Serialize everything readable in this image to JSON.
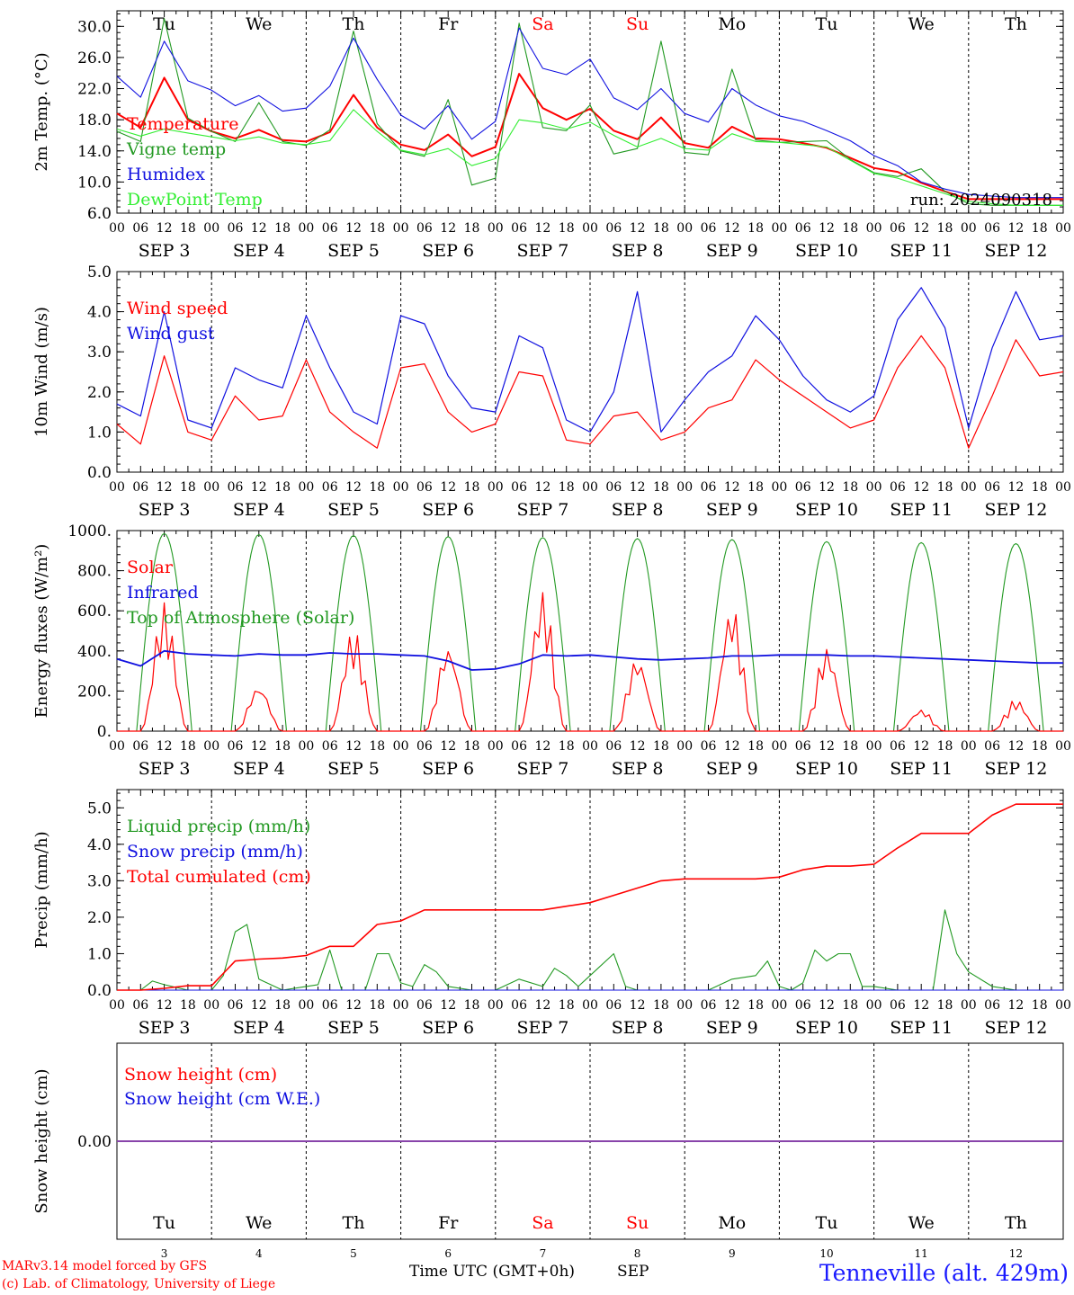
{
  "colors": {
    "red": "#ff0000",
    "green": "#229922",
    "blue": "#1010e0",
    "lightgreen": "#33ee33",
    "purple": "#8844aa"
  },
  "chart_data": [
    {
      "type": "line",
      "ylabel": "2m Temp. (°C)",
      "ylim": [
        6,
        32
      ],
      "yticks": [
        "6.0",
        "10.0",
        "14.0",
        "18.0",
        "22.0",
        "26.0",
        "30.0"
      ],
      "ytick_values": [
        6,
        10,
        14,
        18,
        22,
        26,
        30
      ],
      "xlabel_days": [
        "SEP  3",
        "SEP  4",
        "SEP  5",
        "SEP  6",
        "SEP  7",
        "SEP  8",
        "SEP  9",
        "SEP  10",
        "SEP  11",
        "SEP  12"
      ],
      "weekdays_top": [
        "Tu",
        "We",
        "Th",
        "Fr",
        "Sa",
        "Su",
        "Mo",
        "Tu",
        "We",
        "Th"
      ],
      "run_label": "run: 2024090318",
      "series": [
        {
          "name": "Temperature",
          "color": "red",
          "x": [
            0,
            6,
            12,
            18,
            24,
            30,
            36,
            42,
            48,
            54,
            60,
            66,
            72,
            78,
            84,
            90,
            96,
            102,
            108,
            114,
            120,
            126,
            132,
            138,
            144,
            150,
            156,
            162,
            168,
            174,
            180,
            186,
            192,
            198,
            204,
            210,
            216,
            222,
            228,
            234,
            240
          ],
          "values": [
            18.8,
            17.0,
            23.4,
            18.0,
            16.5,
            15.6,
            16.7,
            15.4,
            15.2,
            16.4,
            21.2,
            17.0,
            14.8,
            14.1,
            16.1,
            13.3,
            14.5,
            23.9,
            19.5,
            18.0,
            19.4,
            16.6,
            15.5,
            18.3,
            15.0,
            14.4,
            17.1,
            15.6,
            15.5,
            15.0,
            14.4,
            13.1,
            11.8,
            11.3,
            9.9,
            8.8,
            7.8,
            7.8,
            7.8,
            7.8,
            7.8
          ]
        },
        {
          "name": "Vigne temp",
          "color": "green",
          "x": [
            0,
            6,
            12,
            18,
            24,
            30,
            36,
            42,
            48,
            54,
            60,
            66,
            72,
            78,
            84,
            90,
            96,
            102,
            108,
            114,
            120,
            126,
            132,
            138,
            144,
            150,
            156,
            162,
            168,
            174,
            180,
            186,
            192,
            198,
            204,
            210,
            216,
            222,
            228,
            234,
            240
          ],
          "values": [
            16.5,
            15.2,
            31.0,
            18.2,
            16.5,
            15.2,
            20.2,
            15.2,
            14.7,
            16.7,
            29.4,
            17.5,
            14.0,
            13.3,
            20.6,
            9.6,
            10.5,
            30.4,
            17.0,
            16.6,
            19.9,
            13.6,
            14.3,
            28.1,
            13.8,
            13.5,
            24.5,
            15.4,
            15.1,
            15.2,
            15.3,
            12.9,
            11.2,
            10.7,
            11.7,
            8.8,
            7.2,
            7.0,
            7.0,
            7.0,
            7.0
          ]
        },
        {
          "name": "Humidex",
          "color": "blue",
          "x": [
            0,
            6,
            12,
            18,
            24,
            30,
            36,
            42,
            48,
            54,
            60,
            66,
            72,
            78,
            84,
            90,
            96,
            102,
            108,
            114,
            120,
            126,
            132,
            138,
            144,
            150,
            156,
            162,
            168,
            174,
            180,
            186,
            192,
            198,
            204,
            210,
            216,
            222,
            228,
            234,
            240
          ],
          "values": [
            23.6,
            20.9,
            28.1,
            23.0,
            21.8,
            19.8,
            21.1,
            19.1,
            19.5,
            22.3,
            28.5,
            23.2,
            18.6,
            16.8,
            19.8,
            15.5,
            17.8,
            29.8,
            24.6,
            23.8,
            25.8,
            20.8,
            19.3,
            22.0,
            18.8,
            17.7,
            22.0,
            19.9,
            18.5,
            17.8,
            16.6,
            15.3,
            13.4,
            12.1,
            10.0,
            9.1,
            8.4,
            8.2,
            8.0,
            8.0,
            8.0
          ]
        },
        {
          "name": "DewPoint Temp",
          "color": "lightgreen",
          "x": [
            0,
            6,
            12,
            18,
            24,
            30,
            36,
            42,
            48,
            54,
            60,
            66,
            72,
            78,
            84,
            90,
            96,
            102,
            108,
            114,
            120,
            126,
            132,
            138,
            144,
            150,
            156,
            162,
            168,
            174,
            180,
            186,
            192,
            198,
            204,
            210,
            216,
            222,
            228,
            234,
            240
          ],
          "values": [
            16.8,
            15.9,
            16.8,
            16.3,
            15.8,
            15.3,
            15.8,
            15.0,
            14.8,
            15.3,
            19.3,
            16.5,
            14.1,
            13.5,
            14.3,
            12.1,
            13.0,
            18.0,
            17.6,
            16.8,
            17.7,
            16.0,
            14.5,
            15.6,
            14.3,
            14.1,
            16.2,
            15.2,
            15.1,
            14.8,
            14.5,
            12.8,
            11.1,
            10.5,
            9.5,
            8.5,
            7.5,
            7.2,
            7.0,
            7.0,
            7.0
          ]
        }
      ]
    },
    {
      "type": "line",
      "ylabel": "10m Wind (m/s)",
      "ylim": [
        0,
        5
      ],
      "yticks": [
        "0.0",
        "1.0",
        "2.0",
        "3.0",
        "4.0",
        "5.0"
      ],
      "ytick_values": [
        0,
        1,
        2,
        3,
        4,
        5
      ],
      "xlabel_days": [
        "SEP  3",
        "SEP  4",
        "SEP  5",
        "SEP  6",
        "SEP  7",
        "SEP  8",
        "SEP  9",
        "SEP  10",
        "SEP  11",
        "SEP  12"
      ],
      "series": [
        {
          "name": "Wind speed",
          "color": "red",
          "x": [
            0,
            6,
            12,
            18,
            24,
            30,
            36,
            42,
            48,
            54,
            60,
            66,
            72,
            78,
            84,
            90,
            96,
            102,
            108,
            114,
            120,
            126,
            132,
            138,
            144,
            150,
            156,
            162,
            168,
            174,
            180,
            186,
            192,
            198,
            204,
            210,
            216,
            222,
            228,
            234,
            240
          ],
          "values": [
            1.2,
            0.7,
            2.9,
            1.0,
            0.8,
            1.9,
            1.3,
            1.4,
            2.8,
            1.5,
            1.0,
            0.6,
            2.6,
            2.7,
            1.5,
            1.0,
            1.2,
            2.5,
            2.4,
            0.8,
            0.7,
            1.4,
            1.5,
            0.8,
            1.0,
            1.6,
            1.8,
            2.8,
            2.3,
            1.9,
            1.5,
            1.1,
            1.3,
            2.6,
            3.4,
            2.6,
            0.6,
            1.9,
            3.3,
            2.4,
            2.5
          ]
        },
        {
          "name": "Wind gust",
          "color": "blue",
          "x": [
            0,
            6,
            12,
            18,
            24,
            30,
            36,
            42,
            48,
            54,
            60,
            66,
            72,
            78,
            84,
            90,
            96,
            102,
            108,
            114,
            120,
            126,
            132,
            138,
            144,
            150,
            156,
            162,
            168,
            174,
            180,
            186,
            192,
            198,
            204,
            210,
            216,
            222,
            228,
            234,
            240
          ],
          "values": [
            1.7,
            1.4,
            4.0,
            1.3,
            1.1,
            2.6,
            2.3,
            2.1,
            3.9,
            2.6,
            1.5,
            1.2,
            3.9,
            3.7,
            2.4,
            1.6,
            1.5,
            3.4,
            3.1,
            1.3,
            1.0,
            2.0,
            4.5,
            1.0,
            1.8,
            2.5,
            2.9,
            3.9,
            3.3,
            2.4,
            1.8,
            1.5,
            1.9,
            3.8,
            4.6,
            3.6,
            1.1,
            3.1,
            4.5,
            3.3,
            3.4
          ]
        }
      ]
    },
    {
      "type": "line",
      "ylabel": "Energy fluxes (W/m²)",
      "ylim": [
        0,
        1000
      ],
      "yticks": [
        "0.",
        "200.",
        "400.",
        "600.",
        "800.",
        "1000."
      ],
      "ytick_values": [
        0,
        200,
        400,
        600,
        800,
        1000
      ],
      "xlabel_days": [
        "SEP  3",
        "SEP  4",
        "SEP  5",
        "SEP  6",
        "SEP  7",
        "SEP  8",
        "SEP  9",
        "SEP  10",
        "SEP  11",
        "SEP  12"
      ],
      "series": [
        {
          "name": "Solar",
          "color": "red",
          "daily_peaks": [
            640,
            230,
            510,
            430,
            700,
            370,
            630,
            420,
            110,
            160
          ]
        },
        {
          "name": "Infrared",
          "color": "blue",
          "x": [
            0,
            6,
            12,
            18,
            24,
            30,
            36,
            42,
            48,
            54,
            60,
            66,
            72,
            78,
            84,
            90,
            96,
            102,
            108,
            114,
            120,
            126,
            132,
            138,
            144,
            150,
            156,
            162,
            168,
            174,
            180,
            186,
            192,
            198,
            204,
            210,
            216,
            222,
            228,
            234,
            240
          ],
          "values": [
            360,
            325,
            400,
            385,
            380,
            375,
            385,
            380,
            380,
            390,
            385,
            385,
            380,
            375,
            350,
            305,
            310,
            335,
            380,
            375,
            380,
            370,
            360,
            355,
            360,
            365,
            375,
            375,
            380,
            380,
            380,
            375,
            375,
            370,
            365,
            360,
            355,
            350,
            345,
            340,
            340
          ]
        },
        {
          "name": "Top of Atmosphere (Solar)",
          "color": "green",
          "daily_peaks": [
            985,
            980,
            975,
            970,
            965,
            960,
            955,
            945,
            940,
            935
          ]
        }
      ]
    },
    {
      "type": "line",
      "ylabel": "Precip (mm/h)",
      "ylim": [
        0,
        5.5
      ],
      "yticks": [
        "0.0",
        "1.0",
        "2.0",
        "3.0",
        "4.0",
        "5.0"
      ],
      "ytick_values": [
        0,
        1,
        2,
        3,
        4,
        5
      ],
      "xlabel_days": [
        "SEP  3",
        "SEP  4",
        "SEP  5",
        "SEP  6",
        "SEP  7",
        "SEP  8",
        "SEP  9",
        "SEP  10",
        "SEP  11",
        "SEP  12"
      ],
      "series": [
        {
          "name": "Liquid precip (mm/h)",
          "color": "green",
          "x": [
            0,
            6,
            9,
            12,
            18,
            24,
            27,
            30,
            33,
            36,
            42,
            48,
            51,
            54,
            57,
            60,
            63,
            66,
            69,
            72,
            75,
            78,
            81,
            84,
            90,
            96,
            102,
            108,
            111,
            114,
            117,
            120,
            126,
            129,
            132,
            135,
            138,
            144,
            150,
            156,
            162,
            165,
            168,
            171,
            174,
            177,
            180,
            183,
            186,
            189,
            192,
            198,
            204,
            207,
            210,
            213,
            216,
            222,
            228,
            234,
            240
          ],
          "values": [
            0,
            0,
            0.25,
            0.15,
            0,
            0,
            0.4,
            1.6,
            1.8,
            0.3,
            0,
            0.1,
            0.15,
            1.1,
            0,
            0,
            0,
            1.0,
            1.0,
            0.2,
            0.1,
            0.7,
            0.5,
            0.1,
            0,
            0,
            0.3,
            0.1,
            0.6,
            0.4,
            0.1,
            0.4,
            1.0,
            0.1,
            0,
            0,
            0,
            0,
            0,
            0.3,
            0.4,
            0.8,
            0.1,
            0,
            0.2,
            1.1,
            0.8,
            1.0,
            1.0,
            0.1,
            0.1,
            0,
            0,
            0,
            2.2,
            1.0,
            0.5,
            0.1,
            0,
            0,
            0
          ]
        },
        {
          "name": "Snow precip (mm/h)",
          "color": "blue",
          "x": [
            0,
            240
          ],
          "values": [
            0,
            0
          ]
        },
        {
          "name": "Total cumulated (cm)",
          "color": "red",
          "x": [
            0,
            6,
            12,
            18,
            24,
            30,
            36,
            42,
            48,
            54,
            60,
            66,
            72,
            78,
            84,
            90,
            96,
            102,
            108,
            114,
            120,
            126,
            132,
            138,
            144,
            150,
            156,
            162,
            168,
            174,
            180,
            186,
            192,
            198,
            204,
            210,
            216,
            222,
            228,
            234,
            240
          ],
          "values": [
            0,
            0,
            0.05,
            0.12,
            0.12,
            0.8,
            0.85,
            0.88,
            0.95,
            1.2,
            1.2,
            1.8,
            1.9,
            2.2,
            2.2,
            2.2,
            2.2,
            2.2,
            2.2,
            2.3,
            2.4,
            2.6,
            2.8,
            3.0,
            3.05,
            3.05,
            3.05,
            3.05,
            3.1,
            3.3,
            3.4,
            3.4,
            3.45,
            3.9,
            4.3,
            4.3,
            4.3,
            4.8,
            5.1,
            5.1,
            5.1
          ]
        }
      ]
    },
    {
      "type": "line",
      "ylabel": "Snow height (cm)",
      "ytick_label": "0.00",
      "series": [
        {
          "name": "Snow height (cm)",
          "color": "red",
          "x": [
            0,
            240
          ],
          "values": [
            0,
            0
          ]
        },
        {
          "name": "Snow height (cm W.E.)",
          "color": "blue",
          "x": [
            0,
            240
          ],
          "values": [
            0,
            0
          ]
        }
      ]
    }
  ],
  "hour_ticks": [
    "00",
    "06",
    "12",
    "18"
  ],
  "final_hour_tick": "00",
  "bottom_weekdays": [
    "Tu",
    "We",
    "Th",
    "Fr",
    "Sa",
    "Su",
    "Mo",
    "Tu",
    "We",
    "Th"
  ],
  "bottom_daynums": [
    "3",
    "4",
    "5",
    "6",
    "7",
    "8",
    "9",
    "10",
    "11",
    "12"
  ],
  "weekend_indices": [
    4,
    5
  ],
  "footer": {
    "credit1": "MARv3.14 model forced by GFS",
    "credit2": "(c) Lab. of Climatology, University of Liege",
    "time_label": "Time UTC (GMT+0h)",
    "month_label": "SEP",
    "location": "Tenneville (alt. 429m)"
  }
}
